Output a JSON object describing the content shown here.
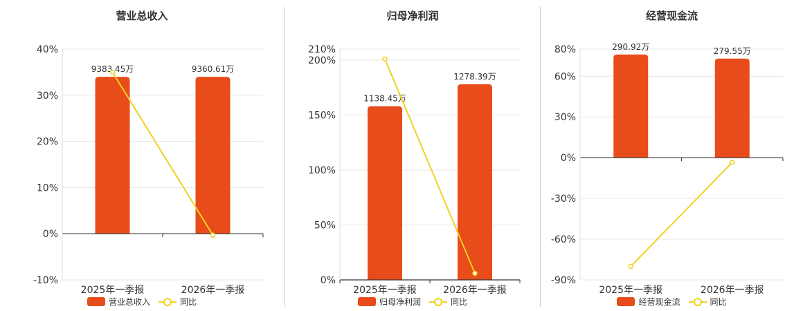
{
  "colors": {
    "bar": "#e84c1a",
    "line": "#f2d022",
    "grid": "#e6e6e6",
    "axis": "#333333",
    "text": "#333333"
  },
  "chart_data": [
    {
      "type": "bar",
      "title": "营业总收入",
      "categories": [
        "2025年一季报",
        "2026年一季报"
      ],
      "series": [
        {
          "name": "营业总收入",
          "kind": "bar",
          "values": [
            34.0,
            34.0
          ],
          "labels": [
            "9383.45万",
            "9360.61万"
          ]
        },
        {
          "name": "同比",
          "kind": "line",
          "values": [
            35.0,
            -0.3
          ]
        }
      ],
      "ylim": [
        -10,
        40
      ],
      "yticks": [
        -10,
        0,
        10,
        20,
        30,
        40
      ],
      "ytick_labels": [
        "-10%",
        "0%",
        "10%",
        "20%",
        "30%",
        "40%"
      ],
      "grid": true,
      "legend": "bottom"
    },
    {
      "type": "bar",
      "title": "归母净利润",
      "categories": [
        "2025年一季报",
        "2026年一季报"
      ],
      "series": [
        {
          "name": "归母净利润",
          "kind": "bar",
          "values": [
            158,
            178
          ],
          "labels": [
            "1138.45万",
            "1278.39万"
          ]
        },
        {
          "name": "同比",
          "kind": "line",
          "values": [
            201,
            6
          ]
        }
      ],
      "ylim": [
        0,
        210
      ],
      "yticks": [
        0,
        50,
        100,
        150,
        200,
        210
      ],
      "ytick_labels": [
        "0%",
        "50%",
        "100%",
        "150%",
        "200%",
        "210%"
      ],
      "grid": true,
      "legend": "bottom"
    },
    {
      "type": "bar",
      "title": "经营现金流",
      "categories": [
        "2025年一季报",
        "2026年一季报"
      ],
      "series": [
        {
          "name": "经营现金流",
          "kind": "bar",
          "values": [
            76,
            73
          ],
          "labels": [
            "290.92万",
            "279.55万"
          ]
        },
        {
          "name": "同比",
          "kind": "line",
          "values": [
            -80,
            -3.5
          ]
        }
      ],
      "ylim": [
        -90,
        80
      ],
      "yticks": [
        -90,
        -60,
        -30,
        0,
        30,
        60,
        80
      ],
      "ytick_labels": [
        "-90%",
        "-60%",
        "-30%",
        "0%",
        "30%",
        "60%",
        "80%"
      ],
      "grid": true,
      "legend": "bottom"
    }
  ]
}
